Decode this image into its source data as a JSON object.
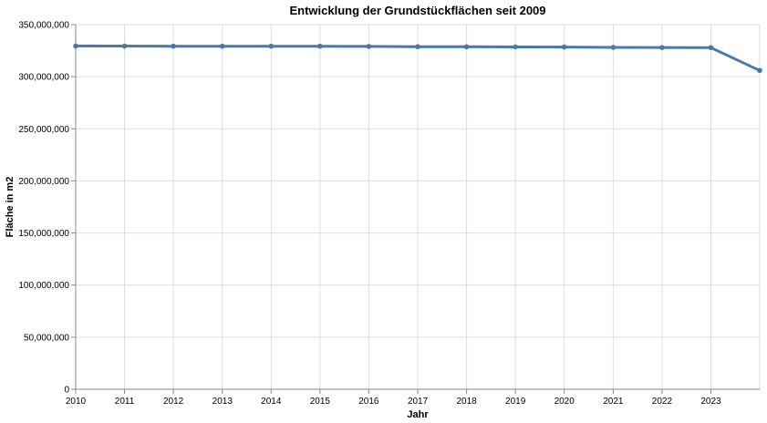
{
  "chart_data": {
    "type": "line",
    "title": "Entwicklung der Grundstückflächen seit 2009",
    "xlabel": "Jahr",
    "ylabel": "Fläche in m2",
    "x_ticks": [
      "2010",
      "2011",
      "2012",
      "2013",
      "2014",
      "2015",
      "2016",
      "2017",
      "2018",
      "2019",
      "2020",
      "2021",
      "2022",
      "2023"
    ],
    "y_ticks": [
      "0",
      "50,000,000",
      "100,000,000",
      "150,000,000",
      "200,000,000",
      "250,000,000",
      "300,000,000",
      "350,000,000"
    ],
    "ylim": [
      0,
      350000000
    ],
    "xlim": [
      "2010-01-01",
      "2024-01-01"
    ],
    "grid": true,
    "series": [
      {
        "x": [
          "2010-01-01",
          "2011-01-01",
          "2012-01-01",
          "2013-01-01",
          "2014-01-01",
          "2015-01-01",
          "2016-01-01",
          "2017-01-01",
          "2018-01-01",
          "2019-01-01",
          "2020-01-01",
          "2021-01-01",
          "2022-01-01",
          "2023-01-01",
          "2024-01-01"
        ],
        "values": [
          329500000,
          329400000,
          329300000,
          329300000,
          329300000,
          329300000,
          329100000,
          328800000,
          328700000,
          328600000,
          328500000,
          328100000,
          328000000,
          327900000,
          306000000
        ],
        "color": "#4c78a8"
      }
    ]
  }
}
